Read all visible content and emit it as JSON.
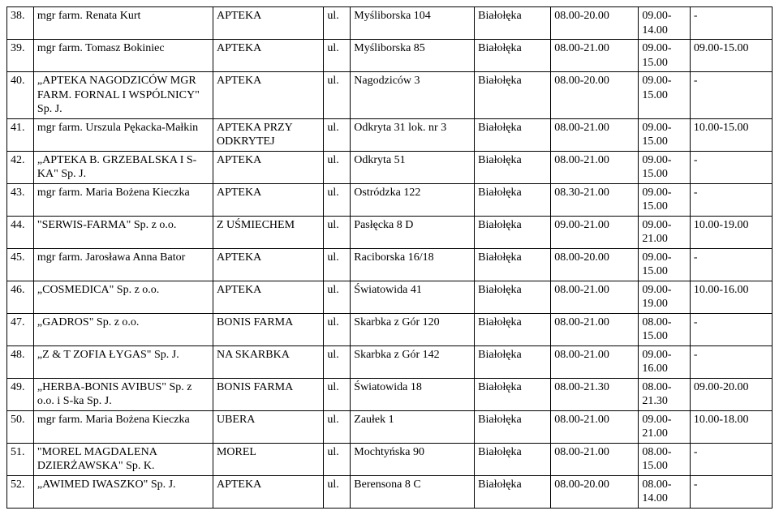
{
  "rows": [
    {
      "n": "38.",
      "name": "mgr farm. Renata Kurt",
      "type": "APTEKA",
      "ul": "ul.",
      "addr": "Myśliborska 104",
      "dist": "Białołęka",
      "h1": "08.00-20.00",
      "h2a": "09.00-",
      "h2b": "14.00",
      "h3": "-"
    },
    {
      "n": "39.",
      "name": "mgr farm. Tomasz Bokiniec",
      "type": "APTEKA",
      "ul": "ul.",
      "addr": "Myśliborska 85",
      "dist": "Białołęka",
      "h1": "08.00-21.00",
      "h2a": "09.00-",
      "h2b": "15.00",
      "h3": "09.00-15.00"
    },
    {
      "n": "40.",
      "name": "„APTEKA NAGODZICÓW MGR FARM. FORNAL I WSPÓLNICY\" Sp. J.",
      "type": "APTEKA",
      "ul": "ul.",
      "addr": "Nagodziców 3",
      "dist": "Białołęka",
      "h1": "08.00-20.00",
      "h2a": "09.00-",
      "h2b": "15.00",
      "h3": "-"
    },
    {
      "n": "41.",
      "name": "mgr farm. Urszula Pękacka-Małkin",
      "type": "APTEKA PRZY ODKRYTEJ",
      "ul": "ul.",
      "addr": "Odkryta 31 lok. nr 3",
      "dist": "Białołęka",
      "h1": "08.00-21.00",
      "h2a": "09.00-",
      "h2b": "15.00",
      "h3": "10.00-15.00"
    },
    {
      "n": "42.",
      "name": "„APTEKA B. GRZEBALSKA I S-KA\" Sp. J.",
      "type": "APTEKA",
      "ul": "ul.",
      "addr": "Odkryta 51",
      "dist": "Białołęka",
      "h1": "08.00-21.00",
      "h2a": "09.00-",
      "h2b": "15.00",
      "h3": "-"
    },
    {
      "n": "43.",
      "name": "mgr farm. Maria Bożena Kieczka",
      "type": "APTEKA",
      "ul": "ul.",
      "addr": "Ostródzka 122",
      "dist": "Białołęka",
      "h1": "08.30-21.00",
      "h2a": "09.00-",
      "h2b": "15.00",
      "h3": "-"
    },
    {
      "n": "44.",
      "name": "\"SERWIS-FARMA\" Sp. z o.o.",
      "type": "Z UŚMIECHEM",
      "ul": "ul.",
      "addr": "Pasłęcka 8 D",
      "dist": "Białołęka",
      "h1": "09.00-21.00",
      "h2a": "09.00-",
      "h2b": "21.00",
      "h3": "10.00-19.00"
    },
    {
      "n": "45.",
      "name": "mgr farm. Jarosława Anna Bator",
      "type": "APTEKA",
      "ul": "ul.",
      "addr": "Raciborska 16/18",
      "dist": "Białołęka",
      "h1": "08.00-20.00",
      "h2a": "09.00-",
      "h2b": "15.00",
      "h3": "-"
    },
    {
      "n": "46.",
      "name": "„COSMEDICA\" Sp. z o.o.",
      "type": "APTEKA",
      "ul": "ul.",
      "addr": "Światowida 41",
      "dist": "Białołęka",
      "h1": "08.00-21.00",
      "h2a": "09.00-",
      "h2b": "19.00",
      "h3": "10.00-16.00"
    },
    {
      "n": "47.",
      "name": "„GADROS\" Sp. z o.o.",
      "type": "BONIS FARMA",
      "ul": "ul.",
      "addr": "Skarbka z Gór 120",
      "dist": "Białołęka",
      "h1": "08.00-21.00",
      "h2a": "08.00-",
      "h2b": "15.00",
      "h3": "-"
    },
    {
      "n": "48.",
      "name": "„Z & T ZOFIA ŁYGAS\" Sp. J.",
      "type": "NA SKARBKA",
      "ul": "ul.",
      "addr": "Skarbka z Gór 142",
      "dist": "Białołęka",
      "h1": "08.00-21.00",
      "h2a": "09.00-",
      "h2b": "16.00",
      "h3": "-"
    },
    {
      "n": "49.",
      "name": "„HERBA-BONIS AVIBUS\" Sp. z o.o. i S-ka Sp. J.",
      "type": "BONIS FARMA",
      "ul": "ul.",
      "addr": "Światowida 18",
      "dist": "Białołęka",
      "h1": "08.00-21.30",
      "h2a": "08.00-",
      "h2b": "21.30",
      "h3": "09.00-20.00"
    },
    {
      "n": "50.",
      "name": "mgr farm. Maria Bożena Kieczka",
      "type": "UBERA",
      "ul": "ul.",
      "addr": "Zaułek 1",
      "dist": "Białołęka",
      "h1": "08.00-21.00",
      "h2a": "09.00-",
      "h2b": "21.00",
      "h3": "10.00-18.00"
    },
    {
      "n": "51.",
      "name": "\"MOREL MAGDALENA DZIERŻAWSKA\" Sp. K.",
      "type": "MOREL",
      "ul": "ul.",
      "addr": "Mochtyńska 90",
      "dist": "Białołęka",
      "h1": "08.00-21.00",
      "h2a": "08.00-",
      "h2b": "15.00",
      "h3": "-"
    },
    {
      "n": "52.",
      "name": "„AWIMED IWASZKO\" Sp. J.",
      "type": "APTEKA",
      "ul": "ul.",
      "addr": "Berensona 8 C",
      "dist": "Białołęka",
      "h1": "08.00-20.00",
      "h2a": "08.00-",
      "h2b": "14.00",
      "h3": "-"
    }
  ]
}
